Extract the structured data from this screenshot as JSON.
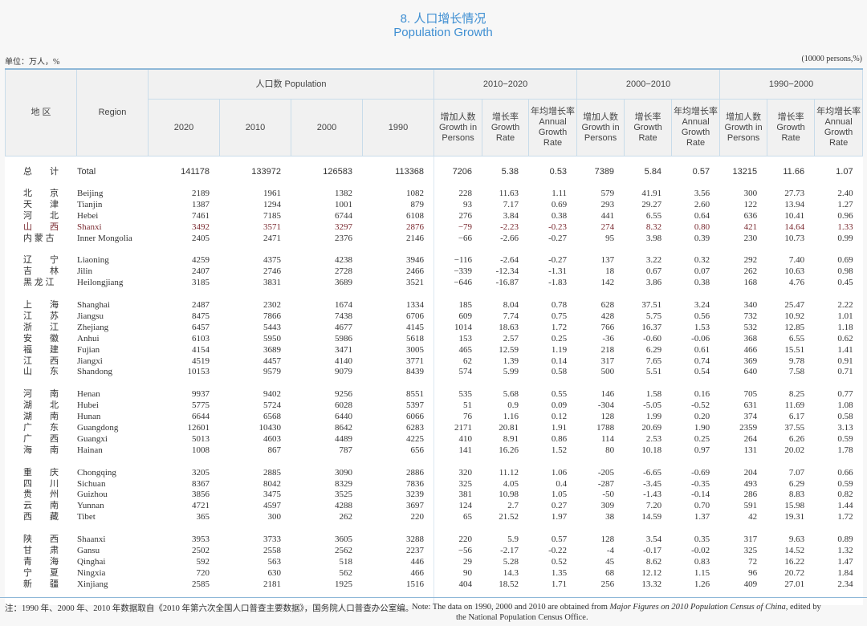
{
  "title": {
    "cn": "8. 人口增长情况",
    "en": "Population Growth"
  },
  "unit": {
    "cn": "单位：万人，%",
    "en": "(10000 persons,%)"
  },
  "header": {
    "region_cn": "地  区",
    "region_en": "Region",
    "population": "人口数 Population",
    "years": [
      "2020",
      "2010",
      "2000",
      "1990"
    ],
    "periods": [
      "2010−2020",
      "2000−2010",
      "1990−2000"
    ],
    "sub": [
      {
        "cn": "增加人数",
        "en": "Growth in Persons"
      },
      {
        "cn": "增长率",
        "en": "Growth Rate"
      },
      {
        "cn": "年均增长率",
        "en": "Annual Growth Rate"
      }
    ]
  },
  "total": {
    "cn": "总　　计",
    "en": "Total",
    "values": [
      "141178",
      "133972",
      "126583",
      "113368",
      "7206",
      "5.38",
      "0.53",
      "7389",
      "5.84",
      "0.57",
      "13215",
      "11.66",
      "1.07"
    ]
  },
  "highlight_color": "#ff8c9b",
  "groups": [
    [
      {
        "cn": "北　　京",
        "en": "Beijing",
        "values": [
          "2189",
          "1961",
          "1382",
          "1082",
          "228",
          "11.63",
          "1.11",
          "579",
          "41.91",
          "3.56",
          "300",
          "27.73",
          "2.40"
        ]
      },
      {
        "cn": "天　　津",
        "en": "Tianjin",
        "values": [
          "1387",
          "1294",
          "1001",
          "879",
          "93",
          "7.17",
          "0.69",
          "293",
          "29.27",
          "2.60",
          "122",
          "13.94",
          "1.27"
        ]
      },
      {
        "cn": "河　　北",
        "en": "Hebei",
        "values": [
          "7461",
          "7185",
          "6744",
          "6108",
          "276",
          "3.84",
          "0.38",
          "441",
          "6.55",
          "0.64",
          "636",
          "10.41",
          "0.96"
        ]
      },
      {
        "cn": "山　　西",
        "en": "Shanxi",
        "highlight": true,
        "values": [
          "3492",
          "3571",
          "3297",
          "2876",
          "−79",
          "-2.23",
          "-0.23",
          "274",
          "8.32",
          "0.80",
          "421",
          "14.64",
          "1.33"
        ]
      },
      {
        "cn": "内 蒙 古",
        "en": "Inner Mongolia",
        "values": [
          "2405",
          "2471",
          "2376",
          "2146",
          "−66",
          "-2.66",
          "-0.27",
          "95",
          "3.98",
          "0.39",
          "230",
          "10.73",
          "0.99"
        ]
      }
    ],
    [
      {
        "cn": "辽　　宁",
        "en": "Liaoning",
        "values": [
          "4259",
          "4375",
          "4238",
          "3946",
          "−116",
          "-2.64",
          "-0.27",
          "137",
          "3.22",
          "0.32",
          "292",
          "7.40",
          "0.69"
        ]
      },
      {
        "cn": "吉　　林",
        "en": "Jilin",
        "values": [
          "2407",
          "2746",
          "2728",
          "2466",
          "−339",
          "-12.34",
          "-1.31",
          "18",
          "0.67",
          "0.07",
          "262",
          "10.63",
          "0.98"
        ]
      },
      {
        "cn": "黑 龙 江",
        "en": "Heilongjiang",
        "values": [
          "3185",
          "3831",
          "3689",
          "3521",
          "−646",
          "-16.87",
          "-1.83",
          "142",
          "3.86",
          "0.38",
          "168",
          "4.76",
          "0.45"
        ]
      }
    ],
    [
      {
        "cn": "上　　海",
        "en": "Shanghai",
        "values": [
          "2487",
          "2302",
          "1674",
          "1334",
          "185",
          "8.04",
          "0.78",
          "628",
          "37.51",
          "3.24",
          "340",
          "25.47",
          "2.22"
        ]
      },
      {
        "cn": "江　　苏",
        "en": "Jiangsu",
        "values": [
          "8475",
          "7866",
          "7438",
          "6706",
          "609",
          "7.74",
          "0.75",
          "428",
          "5.75",
          "0.56",
          "732",
          "10.92",
          "1.01"
        ]
      },
      {
        "cn": "浙　　江",
        "en": "Zhejiang",
        "values": [
          "6457",
          "5443",
          "4677",
          "4145",
          "1014",
          "18.63",
          "1.72",
          "766",
          "16.37",
          "1.53",
          "532",
          "12.85",
          "1.18"
        ]
      },
      {
        "cn": "安　　徽",
        "en": "Anhui",
        "values": [
          "6103",
          "5950",
          "5986",
          "5618",
          "153",
          "2.57",
          "0.25",
          "-36",
          "-0.60",
          "-0.06",
          "368",
          "6.55",
          "0.62"
        ]
      },
      {
        "cn": "福　　建",
        "en": "Fujian",
        "values": [
          "4154",
          "3689",
          "3471",
          "3005",
          "465",
          "12.59",
          "1.19",
          "218",
          "6.29",
          "0.61",
          "466",
          "15.51",
          "1.41"
        ]
      },
      {
        "cn": "江　　西",
        "en": "Jiangxi",
        "values": [
          "4519",
          "4457",
          "4140",
          "3771",
          "62",
          "1.39",
          "0.14",
          "317",
          "7.65",
          "0.74",
          "369",
          "9.78",
          "0.91"
        ]
      },
      {
        "cn": "山　　东",
        "en": "Shandong",
        "values": [
          "10153",
          "9579",
          "9079",
          "8439",
          "574",
          "5.99",
          "0.58",
          "500",
          "5.51",
          "0.54",
          "640",
          "7.58",
          "0.71"
        ]
      }
    ],
    [
      {
        "cn": "河　　南",
        "en": "Henan",
        "values": [
          "9937",
          "9402",
          "9256",
          "8551",
          "535",
          "5.68",
          "0.55",
          "146",
          "1.58",
          "0.16",
          "705",
          "8.25",
          "0.77"
        ]
      },
      {
        "cn": "湖　　北",
        "en": "Hubei",
        "values": [
          "5775",
          "5724",
          "6028",
          "5397",
          "51",
          "0.9",
          "0.09",
          "-304",
          "-5.05",
          "-0.52",
          "631",
          "11.69",
          "1.08"
        ]
      },
      {
        "cn": "湖　　南",
        "en": "Hunan",
        "values": [
          "6644",
          "6568",
          "6440",
          "6066",
          "76",
          "1.16",
          "0.12",
          "128",
          "1.99",
          "0.20",
          "374",
          "6.17",
          "0.58"
        ]
      },
      {
        "cn": "广　　东",
        "en": "Guangdong",
        "values": [
          "12601",
          "10430",
          "8642",
          "6283",
          "2171",
          "20.81",
          "1.91",
          "1788",
          "20.69",
          "1.90",
          "2359",
          "37.55",
          "3.13"
        ]
      },
      {
        "cn": "广　　西",
        "en": "Guangxi",
        "values": [
          "5013",
          "4603",
          "4489",
          "4225",
          "410",
          "8.91",
          "0.86",
          "114",
          "2.53",
          "0.25",
          "264",
          "6.26",
          "0.59"
        ]
      },
      {
        "cn": "海　　南",
        "en": "Hainan",
        "values": [
          "1008",
          "867",
          "787",
          "656",
          "141",
          "16.26",
          "1.52",
          "80",
          "10.18",
          "0.97",
          "131",
          "20.02",
          "1.78"
        ]
      }
    ],
    [
      {
        "cn": "重　　庆",
        "en": "Chongqing",
        "values": [
          "3205",
          "2885",
          "3090",
          "2886",
          "320",
          "11.12",
          "1.06",
          "-205",
          "-6.65",
          "-0.69",
          "204",
          "7.07",
          "0.66"
        ]
      },
      {
        "cn": "四　　川",
        "en": "Sichuan",
        "values": [
          "8367",
          "8042",
          "8329",
          "7836",
          "325",
          "4.05",
          "0.4",
          "-287",
          "-3.45",
          "-0.35",
          "493",
          "6.29",
          "0.59"
        ]
      },
      {
        "cn": "贵　　州",
        "en": "Guizhou",
        "values": [
          "3856",
          "3475",
          "3525",
          "3239",
          "381",
          "10.98",
          "1.05",
          "-50",
          "-1.43",
          "-0.14",
          "286",
          "8.83",
          "0.82"
        ]
      },
      {
        "cn": "云　　南",
        "en": "Yunnan",
        "values": [
          "4721",
          "4597",
          "4288",
          "3697",
          "124",
          "2.7",
          "0.27",
          "309",
          "7.20",
          "0.70",
          "591",
          "15.98",
          "1.44"
        ]
      },
      {
        "cn": "西　　藏",
        "en": "Tibet",
        "values": [
          "365",
          "300",
          "262",
          "220",
          "65",
          "21.52",
          "1.97",
          "38",
          "14.59",
          "1.37",
          "42",
          "19.31",
          "1.72"
        ]
      }
    ],
    [
      {
        "cn": "陕　　西",
        "en": "Shaanxi",
        "values": [
          "3953",
          "3733",
          "3605",
          "3288",
          "220",
          "5.9",
          "0.57",
          "128",
          "3.54",
          "0.35",
          "317",
          "9.63",
          "0.89"
        ]
      },
      {
        "cn": "甘　　肃",
        "en": "Gansu",
        "values": [
          "2502",
          "2558",
          "2562",
          "2237",
          "−56",
          "-2.17",
          "-0.22",
          "-4",
          "-0.17",
          "-0.02",
          "325",
          "14.52",
          "1.32"
        ]
      },
      {
        "cn": "青　　海",
        "en": "Qinghai",
        "values": [
          "592",
          "563",
          "518",
          "446",
          "29",
          "5.28",
          "0.52",
          "45",
          "8.62",
          "0.83",
          "72",
          "16.22",
          "1.47"
        ]
      },
      {
        "cn": "宁　　夏",
        "en": "Ningxia",
        "values": [
          "720",
          "630",
          "562",
          "466",
          "90",
          "14.3",
          "1.35",
          "68",
          "12.12",
          "1.15",
          "96",
          "20.72",
          "1.84"
        ]
      },
      {
        "cn": "新　　疆",
        "en": "Xinjiang",
        "values": [
          "2585",
          "2181",
          "1925",
          "1516",
          "404",
          "18.52",
          "1.71",
          "256",
          "13.32",
          "1.26",
          "409",
          "27.01",
          "2.34"
        ]
      }
    ]
  ],
  "note": {
    "cn": "注：1990 年、2000 年、2010 年数据取自《2010 年第六次全国人口普查主要数据》，国务院人口普查办公室编。",
    "en_prefix": "Note: The data on 1990, 2000 and 2010 are obtained from ",
    "en_source": "Major Figures on 2010 Population Census of China",
    "en_suffix": ", edited by",
    "en_line2": "the National Population Census Office."
  }
}
